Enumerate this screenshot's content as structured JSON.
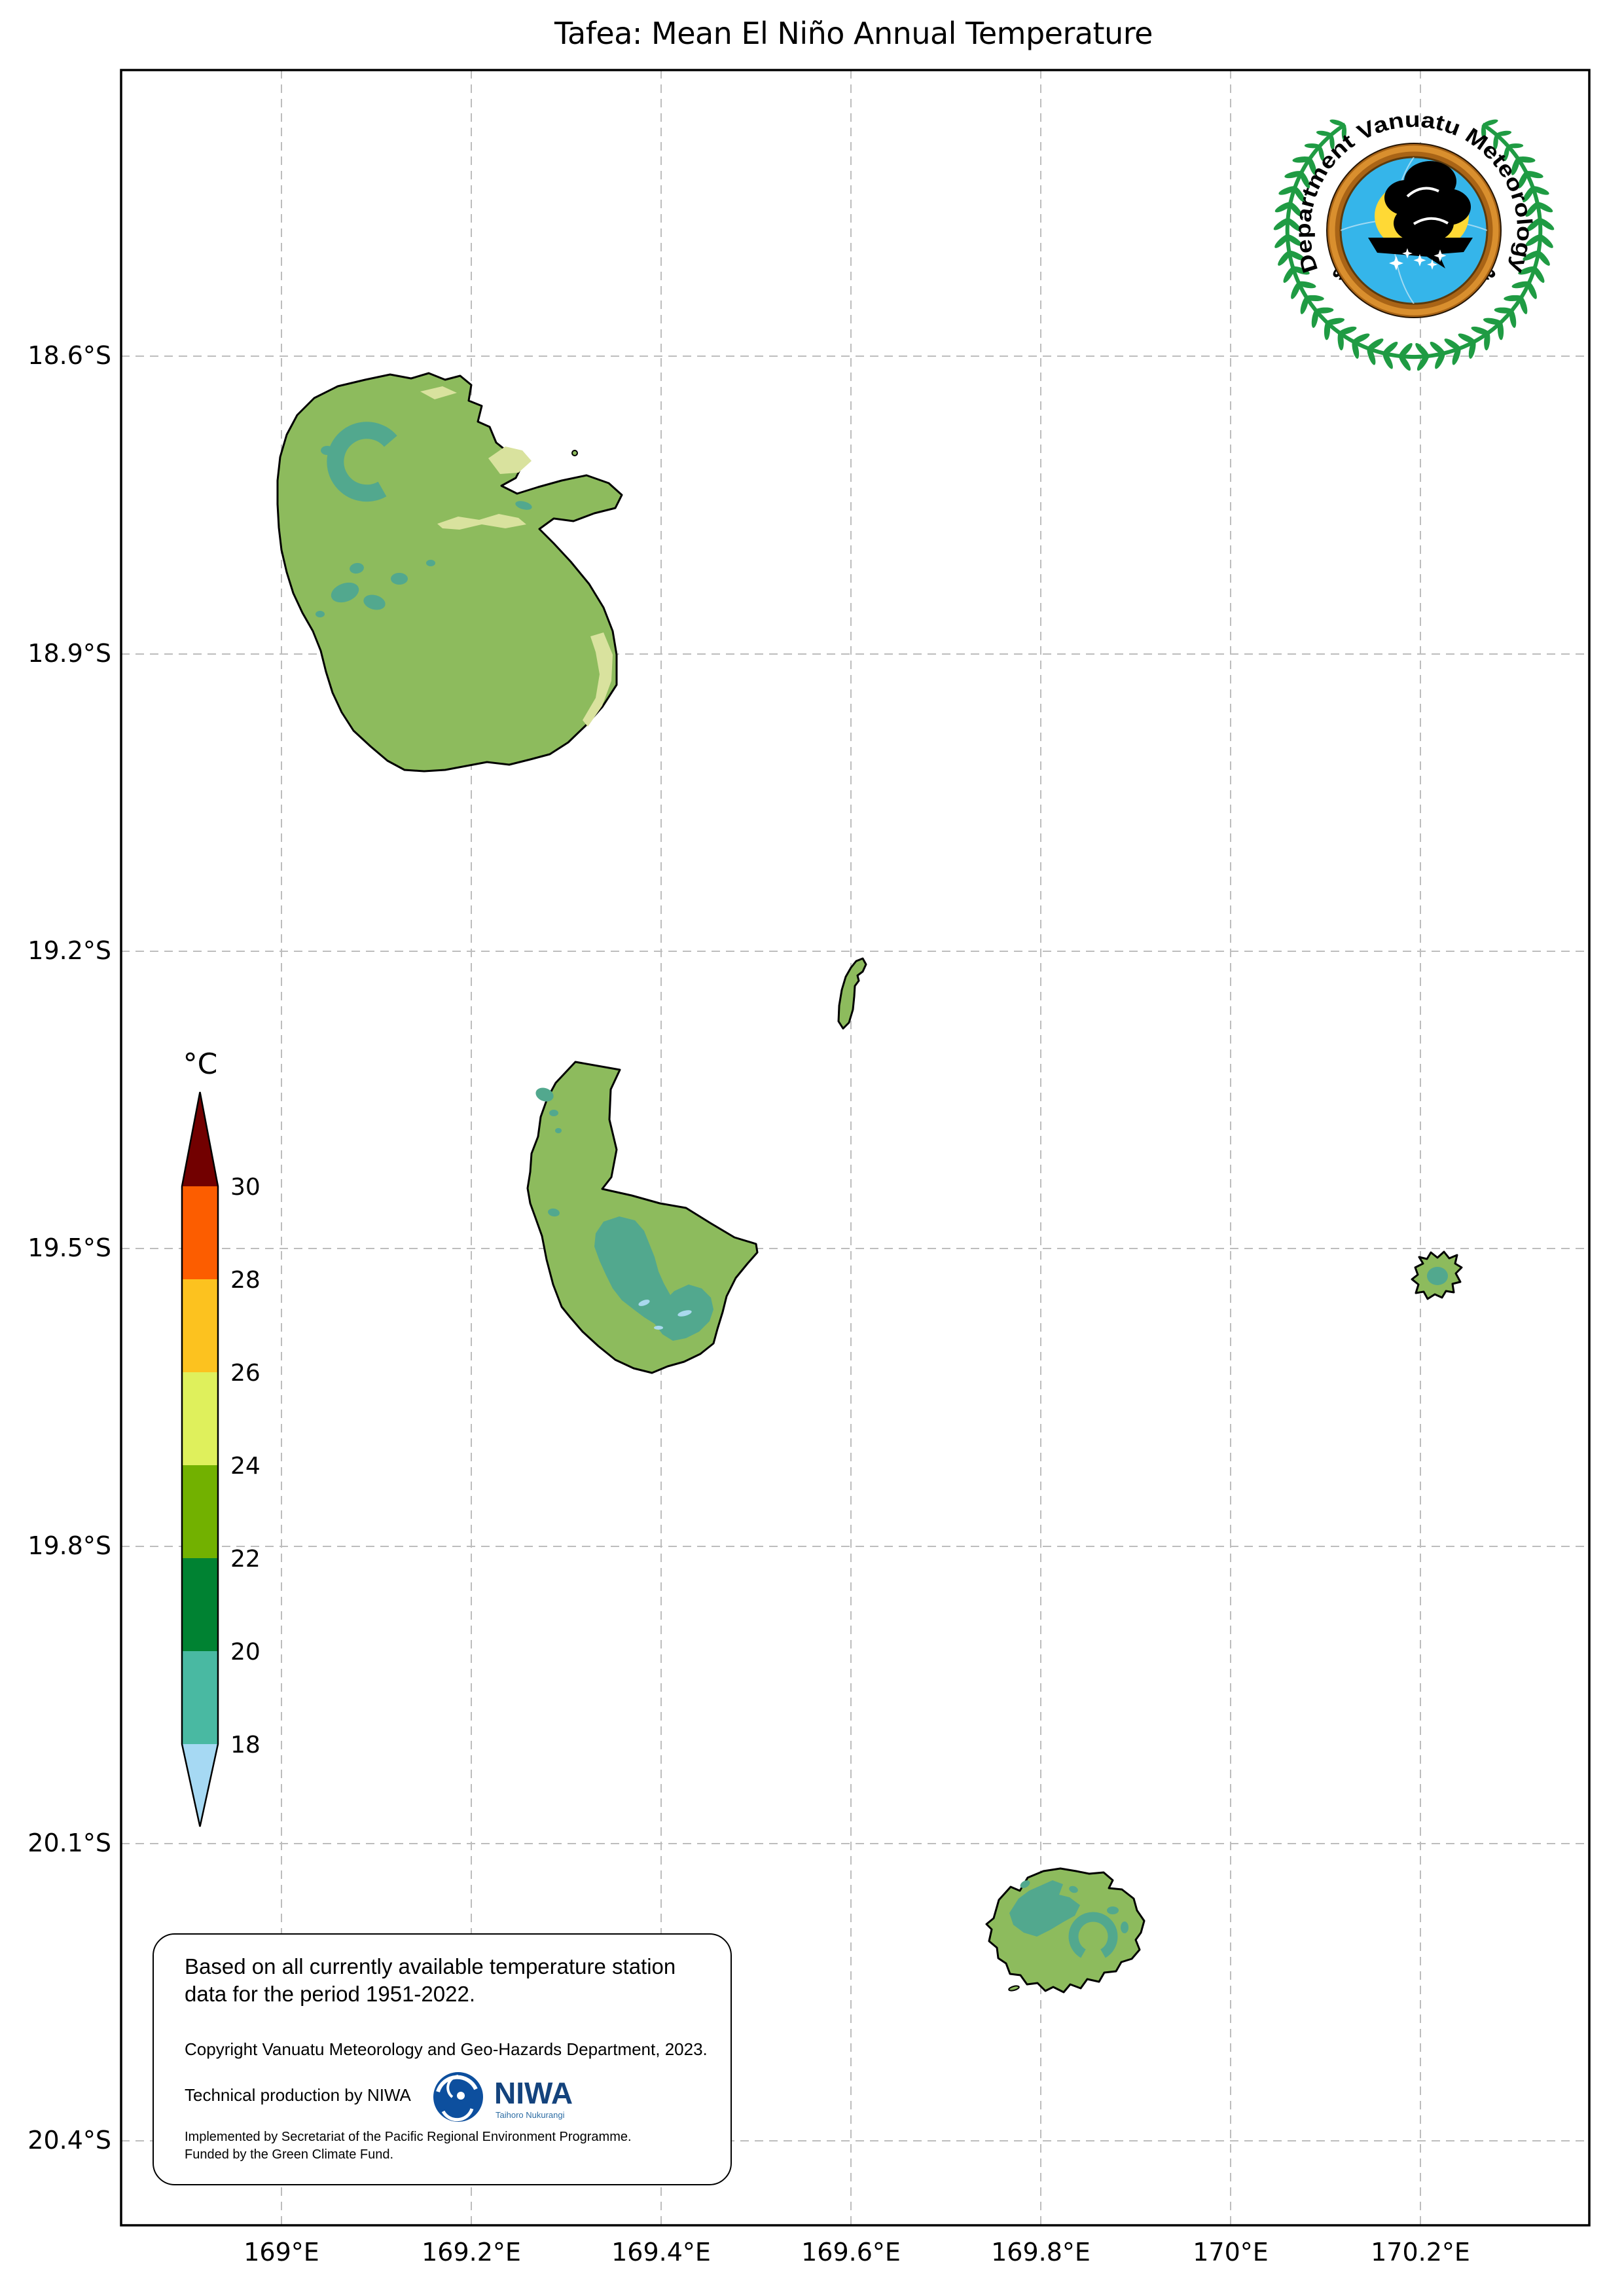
{
  "title": "Tafea: Mean El Niño Annual Temperature",
  "axes": {
    "lat_ticks": [
      "18.6°S",
      "18.9°S",
      "19.2°S",
      "19.5°S",
      "19.8°S",
      "20.1°S",
      "20.4°S"
    ],
    "lon_ticks": [
      "169°E",
      "169.2°E",
      "169.4°E",
      "169.6°E",
      "169.8°E",
      "170°E",
      "170.2°E"
    ]
  },
  "colorbar": {
    "unit": "°C",
    "tick_labels": [
      "30",
      "28",
      "26",
      "24",
      "22",
      "20",
      "18"
    ],
    "segments": [
      {
        "label": "above 30",
        "color": "#720000"
      },
      {
        "label": "28 to 30",
        "color": "#fc5d00"
      },
      {
        "label": "26 to 28",
        "color": "#fcc21f"
      },
      {
        "label": "24 to 26",
        "color": "#dff05c"
      },
      {
        "label": "22 to 24",
        "color": "#72b100"
      },
      {
        "label": "20 to 22",
        "color": "#008232"
      },
      {
        "label": "18 to 20",
        "color": "#49b9a2"
      },
      {
        "label": "below 18",
        "color": "#a6d9f3"
      }
    ]
  },
  "map": {
    "land_color": "#8dbb5d",
    "highland_color": "#52a88e",
    "peak_color": "#aad9ee",
    "coast_color": "#d9e29e",
    "outline_color": "#000000",
    "grid_color": "#bdbdbd"
  },
  "agency_logo": {
    "arc_text_top": "Department Vanuatu Meteorology",
    "arc_text_bottom": "and Geo-Hazards",
    "wreath_color": "#1f9b43",
    "ring_color": "#a96416",
    "ring_light_color": "#d98f2e",
    "sky_color": "#35b5ea",
    "sun_color": "#ffd935",
    "cloud_color": "#000000",
    "star_color": "#ffffff"
  },
  "info_box": {
    "statement": "Based on all currently available temperature station data for the period 1951-2022.",
    "copyright": "Copyright Vanuatu Meteorology and Geo-Hazards Department, 2023.",
    "production": "Technical production by NIWA",
    "implementation": "Implemented by Secretariat of the Pacific Regional Environment Programme.\nFunded by the Green Climate Fund.",
    "niwa": {
      "name": "NIWA",
      "tagline": "Taihoro Nukurangi",
      "emblem_color": "#0d4f9e",
      "word_color": "#14437d",
      "tag_color": "#2e6da4"
    }
  }
}
